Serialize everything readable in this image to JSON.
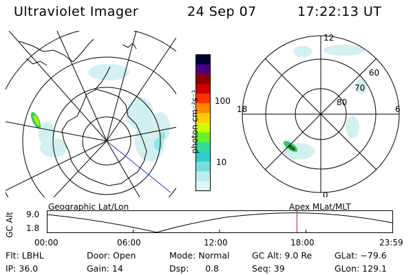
{
  "header": {
    "title": "Ultraviolet Imager",
    "date": "24 Sep 07",
    "time": "17:22:13 UT"
  },
  "colorbar": {
    "unit_label": "photon cm⁻²s⁻¹",
    "ticks": [
      "100",
      "10"
    ],
    "colors": [
      "#000033",
      "#4b0082",
      "#8b0000",
      "#cc0000",
      "#ff3300",
      "#ff8800",
      "#ffcc00",
      "#ccff00",
      "#66ee33",
      "#33dd99",
      "#33cccc",
      "#77dddd",
      "#bbeeee",
      "#ddf6f6"
    ]
  },
  "left_map": {
    "label": "Geographic Lat/Lon"
  },
  "right_map": {
    "label": "Apex MLat/MLT",
    "mlt_labels": {
      "top": "12",
      "left": "18",
      "right": "6",
      "bottom": "0"
    },
    "lat_labels": [
      "60",
      "70",
      "80"
    ]
  },
  "timeline": {
    "axis_label": "GC Alt",
    "y_ticks": [
      "9.0",
      "1.8"
    ],
    "x_ticks": [
      "00:00",
      "06:00",
      "12:00",
      "18:00",
      "23:59"
    ],
    "current_time_hours": 17.37
  },
  "info": {
    "col1": [
      "Flt: LBHL",
      "IP: 36.0"
    ],
    "col2": [
      "Door: Open",
      "Gain: 14"
    ],
    "col3": [
      "Mode: Normal",
      "Dsp:      0.8"
    ],
    "col4": [
      "GC Alt: 9.0 Re",
      "Seq: 39"
    ],
    "col5": [
      "GLat: −79.6",
      "GLon: 129.1"
    ]
  }
}
